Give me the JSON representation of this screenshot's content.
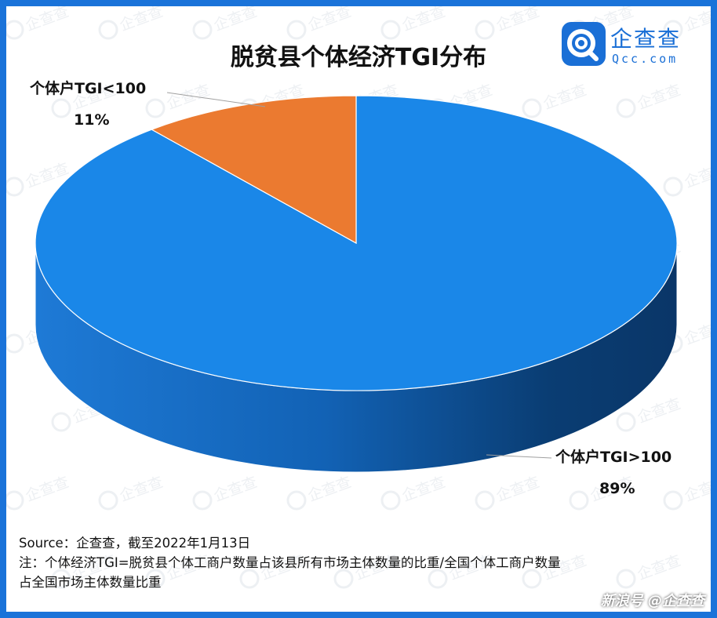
{
  "header": {
    "title": "脱贫县个体经济TGI分布",
    "logo_name": "企查查",
    "logo_domain": "Qcc.com"
  },
  "chart_data": {
    "type": "pie",
    "title": "脱贫县个体经济TGI分布",
    "slices": [
      {
        "label": "个体户TGI>100",
        "value": 89,
        "value_label": "89%",
        "color": "#1a87e8"
      },
      {
        "label": "个体户TGI<100",
        "value": 11,
        "value_label": "11%",
        "color": "#eb7a30"
      }
    ],
    "style": "3d"
  },
  "footer": {
    "source": "Source：企查查，截至2022年1月13日",
    "note_line1": "注：个体经济TGI=脱贫县个体工商户数量占该县所有市场主体数量的比重/全国个体工商户数量",
    "note_line2": "占全国市场主体数量比重"
  },
  "watermark": {
    "text": "企查查",
    "credit": "新浪号 @企查查"
  }
}
